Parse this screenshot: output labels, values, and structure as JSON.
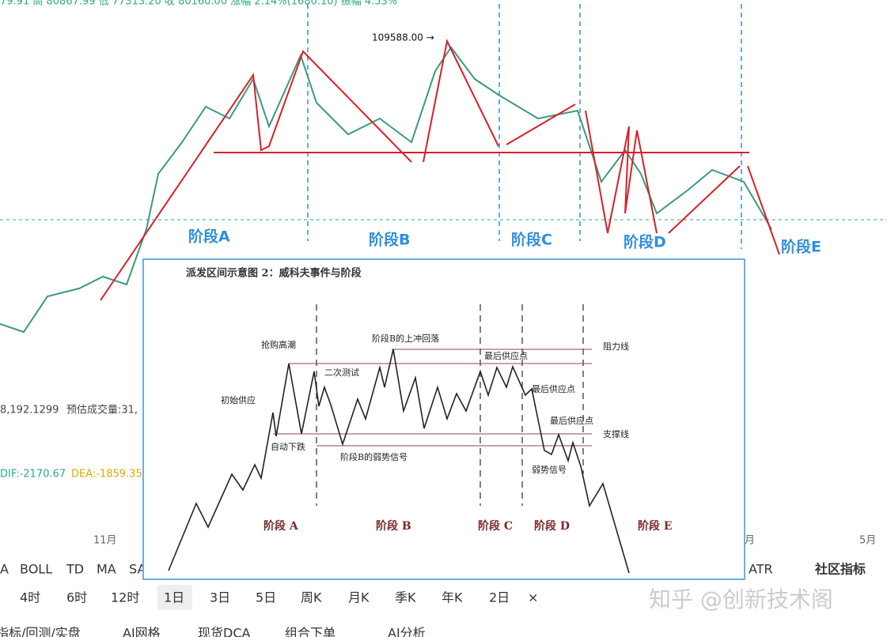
{
  "header": {
    "quote": "79.91 高 80867.99 低 77313.20 收 80160.00 涨幅 2.14%(1680.10) 振幅 4.53%"
  },
  "price_chart": {
    "high_label": "109588.00 →",
    "stages": [
      "阶段A",
      "阶段B",
      "阶段C",
      "阶段D",
      "阶段E"
    ],
    "x_labels": [
      "11月",
      "月",
      "5月"
    ]
  },
  "volume_panel": {
    "label": "8,192.1299",
    "estimate": "预估成交量:31,"
  },
  "macd_panel": {
    "dif": "DIF:-2170.67",
    "dea": "DEA:-1859.35"
  },
  "indicator_bar": {
    "items": [
      "A",
      "BOLL",
      "TD",
      "MA",
      "SA"
    ],
    "right": [
      "ATR",
      "社区指标"
    ]
  },
  "timeframes": {
    "items": [
      "4时",
      "6时",
      "12时",
      "1日",
      "3日",
      "5日",
      "周K",
      "月K",
      "季K",
      "年K",
      "2日",
      "×"
    ]
  },
  "bottom_tabs": {
    "items": [
      "指标/回测/实盘",
      "AI网格",
      "现货DCA",
      "组合下单",
      "AI分析"
    ]
  },
  "watermark": "知乎 @创新技术阁",
  "inset": {
    "title": "派发区间示意图 2：威科夫事件与阶段",
    "labels": {
      "buying_climax": "抢购高潮",
      "upthrust": "阶段B的上冲回落",
      "resistance": "阻力线",
      "lpsy1": "最后供应点",
      "secondary_test": "二次测试",
      "preliminary_supply": "初始供应",
      "lpsy2": "最后供应点",
      "lpsy3": "最后供应点",
      "support": "支撑线",
      "auto_reaction": "自动下跌",
      "sow_b": "阶段B的弱势信号",
      "sow": "弱势信号"
    },
    "stages": [
      "阶段 A",
      "阶段 B",
      "阶段 C",
      "阶段 D",
      "阶段 E"
    ]
  }
}
